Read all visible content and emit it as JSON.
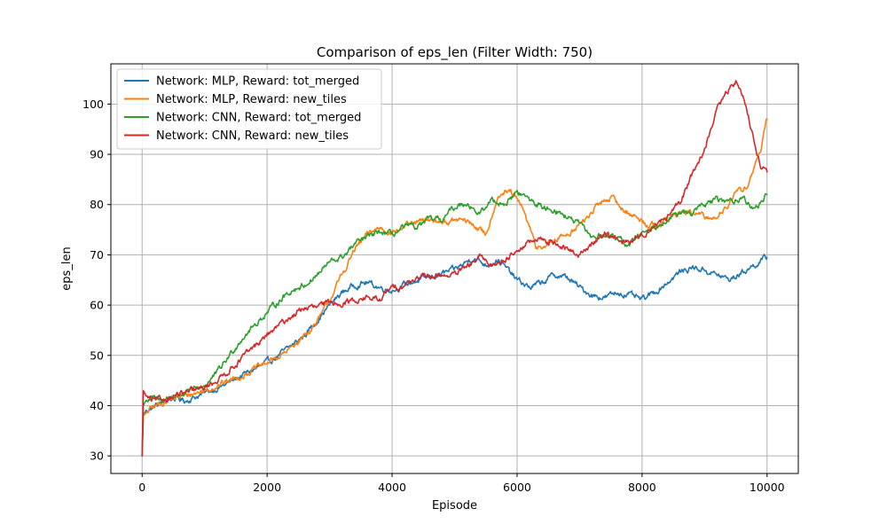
{
  "chart_data": {
    "type": "line",
    "title": "Comparison of eps_len (Filter Width: 750)",
    "xlabel": "Episode",
    "ylabel": "eps_len",
    "xlim": [
      -500,
      10500
    ],
    "ylim": [
      26.5,
      108
    ],
    "xticks": [
      0,
      2000,
      4000,
      6000,
      8000,
      10000
    ],
    "yticks": [
      30,
      40,
      50,
      60,
      70,
      80,
      90,
      100
    ],
    "grid": true,
    "legend_position": "top-left",
    "series": [
      {
        "name": "Network: MLP, Reward: tot_merged",
        "color": "#1f77b4",
        "x": [
          0,
          20,
          60,
          150,
          300,
          500,
          700,
          1000,
          1300,
          1600,
          2000,
          2300,
          2600,
          2800,
          3000,
          3200,
          3400,
          3600,
          3800,
          4000,
          4300,
          4600,
          5000,
          5300,
          5500,
          5700,
          6000,
          6200,
          6400,
          6600,
          6800,
          7000,
          7200,
          7400,
          7600,
          7800,
          8000,
          8200,
          8400,
          8600,
          8800,
          9000,
          9200,
          9400,
          9600,
          9800,
          10000
        ],
        "y": [
          30,
          38,
          39,
          39.5,
          40.5,
          41.5,
          41,
          42.5,
          44,
          46,
          48.5,
          51,
          54,
          57,
          60,
          62.5,
          64,
          64.5,
          63.5,
          63,
          64.5,
          65.5,
          67,
          69.5,
          68,
          69,
          65,
          63.5,
          64.5,
          66,
          65.5,
          63.5,
          62,
          61.5,
          62.5,
          62,
          61,
          62.5,
          64.5,
          66.5,
          67.5,
          67,
          66,
          65,
          66.5,
          68,
          69.5
        ]
      },
      {
        "name": "Network: MLP, Reward: new_tiles",
        "color": "#ff7f0e",
        "x": [
          0,
          20,
          60,
          150,
          300,
          500,
          700,
          1000,
          1300,
          1600,
          2000,
          2300,
          2600,
          2800,
          3000,
          3200,
          3400,
          3600,
          3800,
          4000,
          4300,
          4600,
          4900,
          5100,
          5300,
          5500,
          5700,
          5900,
          6100,
          6300,
          6500,
          6700,
          6900,
          7100,
          7300,
          7500,
          7700,
          7900,
          8100,
          8300,
          8500,
          8700,
          8900,
          9100,
          9300,
          9500,
          9700,
          9900,
          10000
        ],
        "y": [
          30,
          38,
          38.5,
          39.5,
          40.5,
          41.5,
          42,
          43,
          44.5,
          46,
          48.5,
          50.5,
          54,
          56.5,
          61,
          66,
          71,
          74,
          75.5,
          74.5,
          76,
          77,
          76.5,
          77,
          76,
          74,
          82,
          82.5,
          79,
          71.5,
          72,
          73.5,
          75,
          77,
          80,
          81.5,
          79,
          77.5,
          76,
          76,
          78,
          78.5,
          78,
          77,
          79,
          82,
          84,
          91,
          97
        ]
      },
      {
        "name": "Network: CNN, Reward: tot_merged",
        "color": "#2ca02c",
        "x": [
          0,
          20,
          60,
          150,
          300,
          500,
          700,
          1000,
          1200,
          1400,
          1600,
          1800,
          2000,
          2200,
          2400,
          2600,
          2800,
          3000,
          3200,
          3400,
          3600,
          3800,
          4000,
          4200,
          4400,
          4600,
          4800,
          5000,
          5200,
          5400,
          5600,
          5800,
          6000,
          6200,
          6400,
          6600,
          6800,
          7000,
          7200,
          7400,
          7600,
          7800,
          8000,
          8200,
          8400,
          8600,
          8800,
          9000,
          9200,
          9400,
          9600,
          9800,
          10000
        ],
        "y": [
          30,
          40,
          41,
          41.5,
          41,
          42,
          42.5,
          44,
          46.5,
          50,
          53.5,
          56,
          58.5,
          61,
          63,
          64,
          66,
          68.5,
          69.5,
          72,
          73.5,
          74.5,
          74,
          75.5,
          75.5,
          77,
          77,
          79.5,
          80.5,
          78,
          81,
          80,
          82.5,
          81,
          79.5,
          79,
          77.5,
          76,
          73.5,
          74,
          73,
          72,
          74.5,
          75.5,
          77.5,
          78,
          78.5,
          80,
          81,
          80.5,
          81.5,
          79,
          82
        ]
      },
      {
        "name": "Network: CNN, Reward: new_tiles",
        "color": "#d62728",
        "x": [
          0,
          20,
          60,
          150,
          300,
          500,
          700,
          1000,
          1300,
          1600,
          2000,
          2300,
          2600,
          2800,
          3000,
          3200,
          3400,
          3600,
          3800,
          4000,
          4200,
          4400,
          4600,
          4800,
          5000,
          5200,
          5400,
          5600,
          5800,
          6000,
          6200,
          6400,
          6600,
          6800,
          7000,
          7200,
          7400,
          7600,
          7800,
          8000,
          8200,
          8400,
          8600,
          8800,
          9000,
          9100,
          9200,
          9300,
          9400,
          9500,
          9600,
          9700,
          9800,
          9900,
          10000
        ],
        "y": [
          30,
          43,
          42,
          41,
          41,
          42,
          42.5,
          43.5,
          46,
          49.5,
          54,
          57,
          59.5,
          59.5,
          60.5,
          60.5,
          61,
          61.5,
          61,
          63.5,
          64,
          65.5,
          65.5,
          66,
          66,
          67.5,
          69.5,
          68,
          69,
          71,
          72.5,
          73,
          72.5,
          71,
          70,
          72,
          74.5,
          73,
          72.5,
          74,
          76,
          77.5,
          80,
          86,
          91,
          95,
          99,
          101,
          103,
          104.5,
          102,
          98,
          92,
          88,
          86.5
        ]
      }
    ]
  }
}
